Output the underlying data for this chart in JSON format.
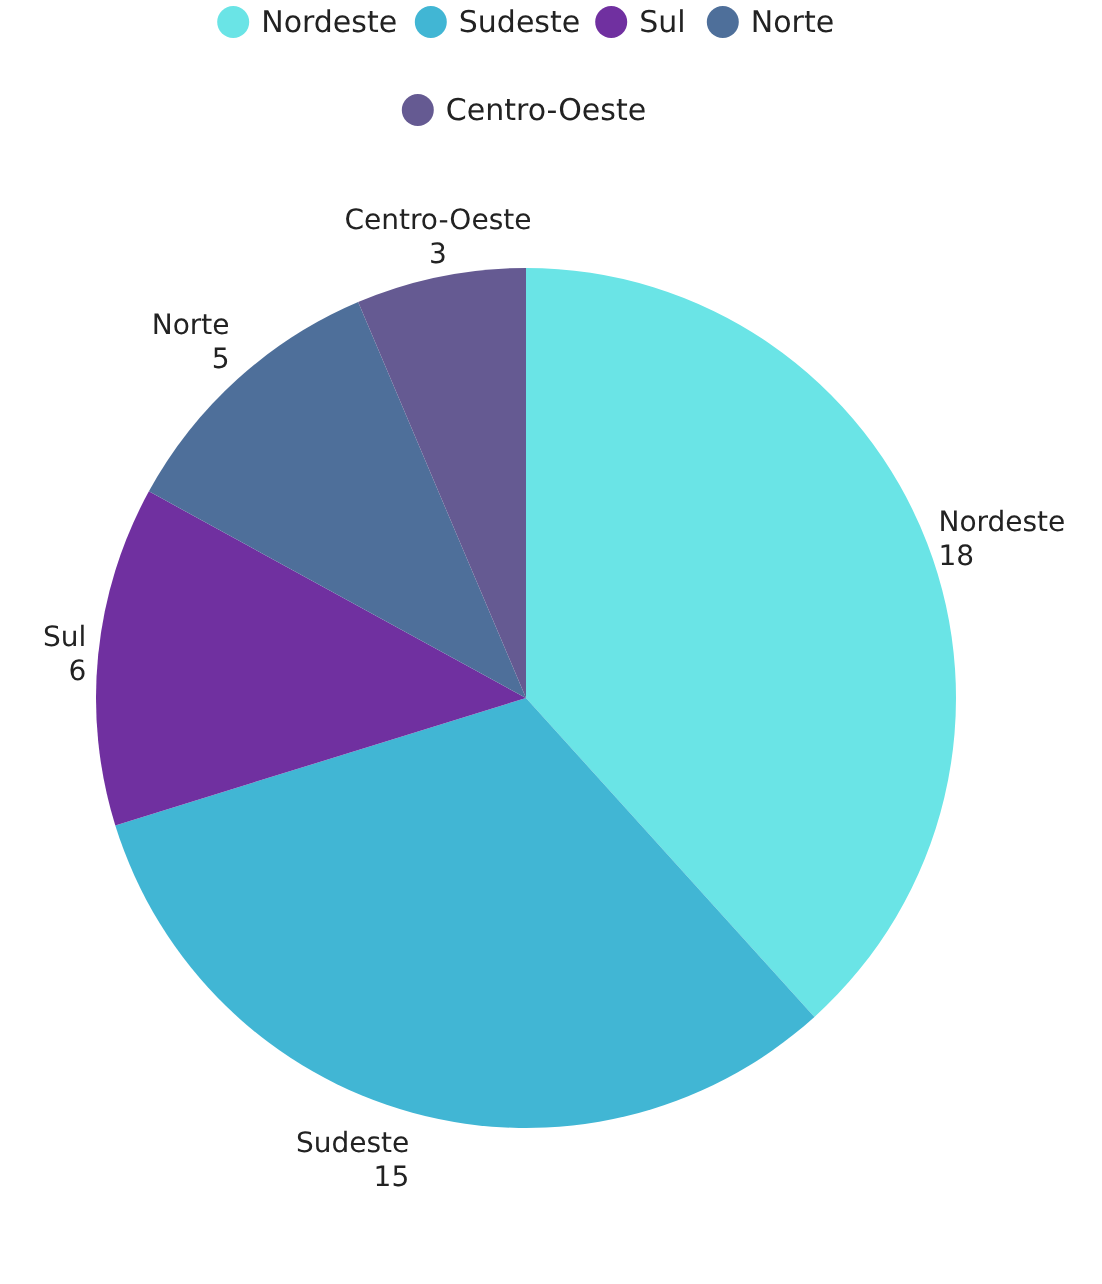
{
  "chart_data": {
    "type": "pie",
    "categories": [
      "Nordeste",
      "Sudeste",
      "Sul",
      "Norte",
      "Centro-Oeste"
    ],
    "values": [
      18,
      15,
      6,
      5,
      3
    ],
    "colors": [
      "#6ae4e6",
      "#41b6d4",
      "#7030a0",
      "#4e6f9a",
      "#655a92"
    ],
    "legend": "top",
    "data_labels": true
  }
}
